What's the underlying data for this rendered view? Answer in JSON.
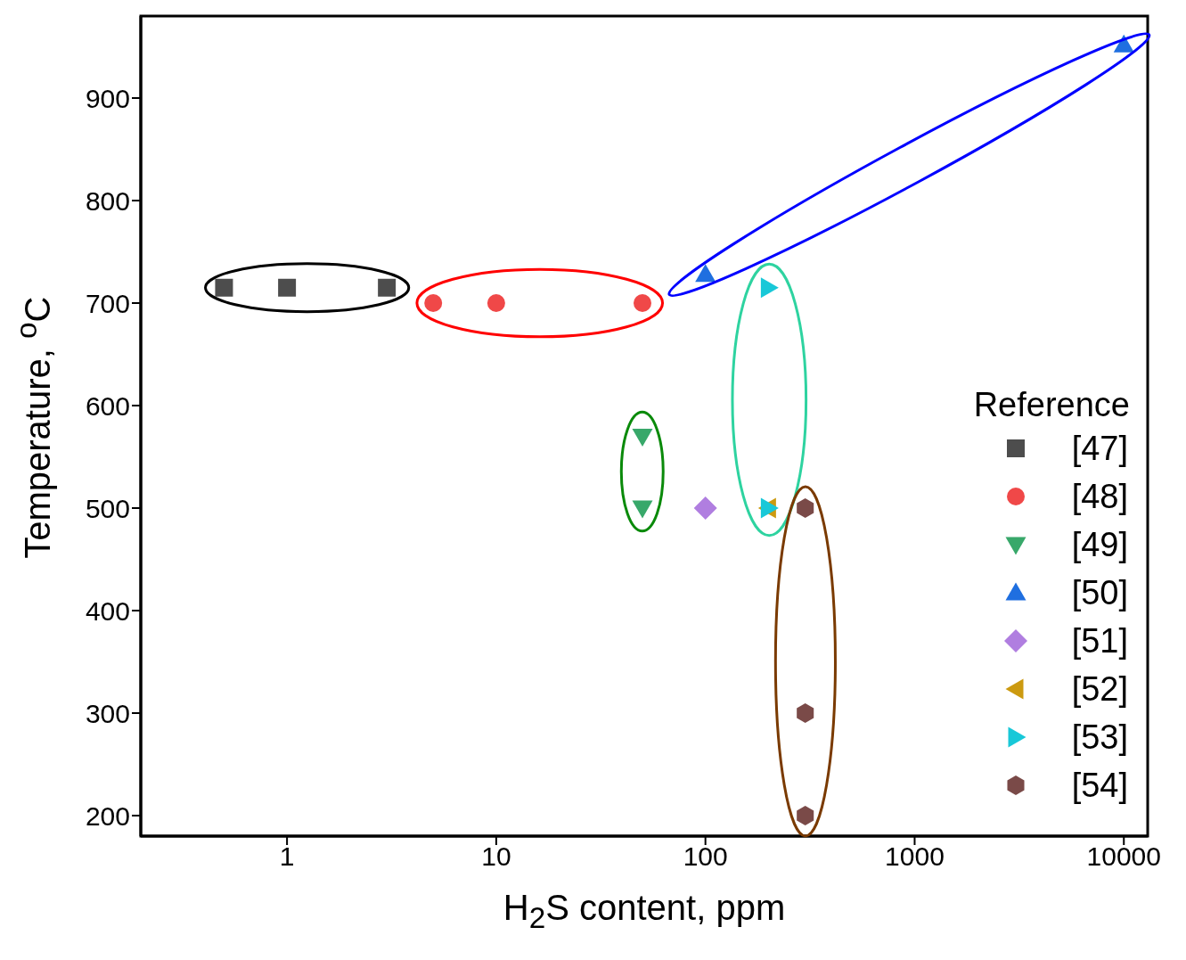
{
  "chart_data": {
    "type": "scatter",
    "xlabel": "H$_{2}$S content, ppm",
    "ylabel": "Temperature, $^{o}$C",
    "legend_title": "Reference",
    "log": "x",
    "xlim": [
      0.2,
      13000
    ],
    "xticks": [
      1,
      10,
      100,
      1000,
      10000
    ],
    "ylim": [
      180,
      980
    ],
    "yticks": [
      200,
      300,
      400,
      500,
      600,
      700,
      800,
      900
    ],
    "grid": false,
    "legend": "right",
    "series": [
      {
        "name": "[47]",
        "color": "#4d4d4d",
        "marker": "square",
        "x": [
          0.5,
          1,
          3
        ],
        "values": [
          715,
          715,
          715
        ]
      },
      {
        "name": "[48]",
        "color": "#f04848",
        "marker": "circle",
        "x": [
          5,
          10,
          50
        ],
        "values": [
          700,
          700,
          700
        ]
      },
      {
        "name": "[49]",
        "color": "#38a86a",
        "marker": "triangle-down",
        "x": [
          50,
          50
        ],
        "values": [
          570,
          500
        ]
      },
      {
        "name": "[50]",
        "color": "#1f6fe0",
        "marker": "triangle",
        "x": [
          100,
          10000
        ],
        "values": [
          728,
          952
        ]
      },
      {
        "name": "[51]",
        "color": "#b07ee0",
        "marker": "diamond",
        "x": [
          100
        ],
        "values": [
          500
        ]
      },
      {
        "name": "[52]",
        "color": "#cc9a10",
        "marker": "triangle-left",
        "x": [
          200
        ],
        "values": [
          500
        ]
      },
      {
        "name": "[53]",
        "color": "#18c8d8",
        "marker": "triangle-right",
        "x": [
          200,
          200
        ],
        "values": [
          715,
          500
        ]
      },
      {
        "name": "[54]",
        "color": "#7a4a48",
        "x": [
          300,
          300,
          300
        ],
        "values": [
          500,
          300,
          200
        ]
      }
    ]
  }
}
